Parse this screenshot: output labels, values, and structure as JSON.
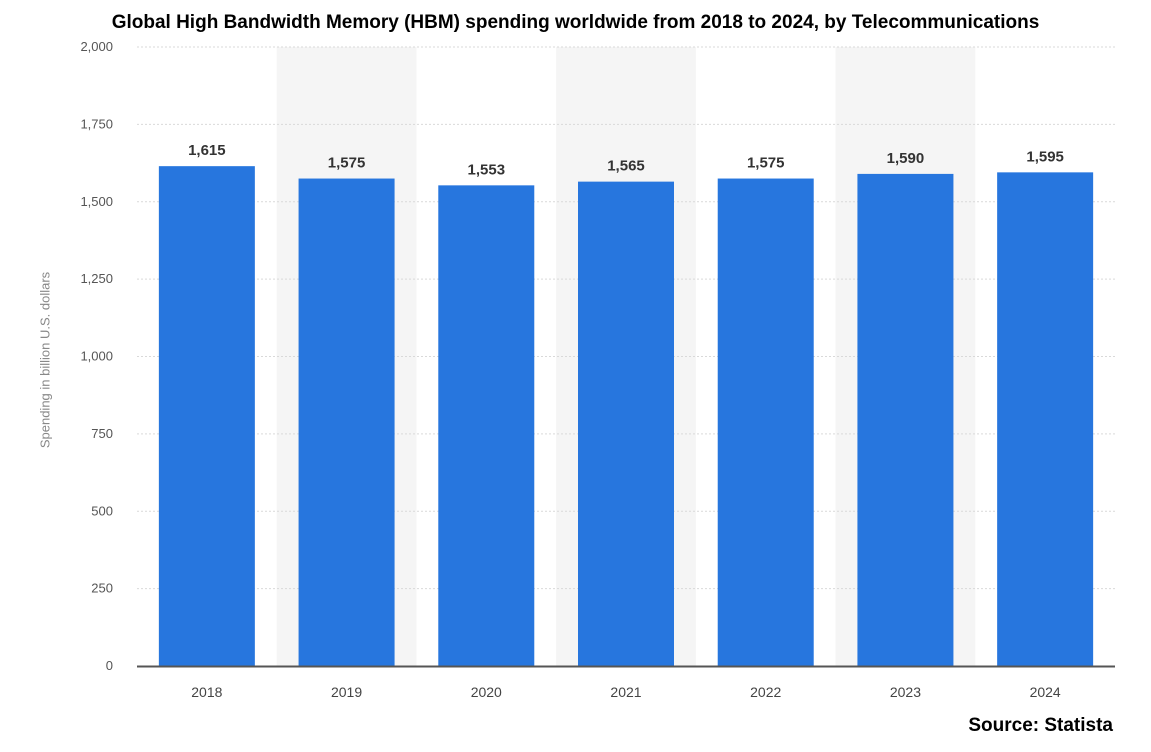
{
  "chart_data": {
    "type": "bar",
    "title": "Global High Bandwidth Memory (HBM) spending worldwide from 2018 to 2024, by Telecommunications",
    "ylabel": "Spending in billion U.S. dollars",
    "xlabel": "",
    "categories": [
      "2018",
      "2019",
      "2020",
      "2021",
      "2022",
      "2023",
      "2024"
    ],
    "values": [
      1615,
      1575,
      1553,
      1565,
      1575,
      1590,
      1595
    ],
    "value_labels": [
      "1,615",
      "1,575",
      "1,553",
      "1,565",
      "1,575",
      "1,590",
      "1,595"
    ],
    "ylim": [
      0,
      2000
    ],
    "yticks": [
      0,
      250,
      500,
      750,
      1000,
      1250,
      1500,
      1750,
      2000
    ],
    "ytick_labels": [
      "0",
      "250",
      "500",
      "750",
      "1,000",
      "1,250",
      "1,500",
      "1,750",
      "2,000"
    ],
    "grid": true,
    "bar_color": "#2776de",
    "alt_band_color": "#f5f5f5",
    "source": "Source: Statista"
  }
}
